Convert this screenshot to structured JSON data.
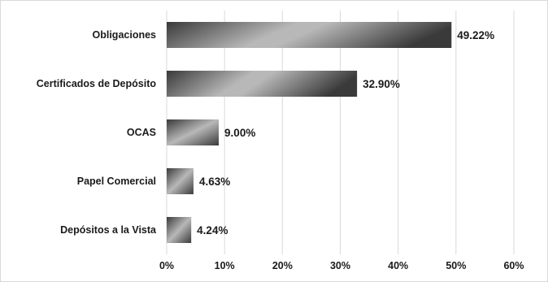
{
  "chart_data": {
    "type": "bar",
    "orientation": "horizontal",
    "categories": [
      "Obligaciones",
      "Certificados de Depósito",
      "OCAS",
      "Papel Comercial",
      "Depósitos a la Vista"
    ],
    "values": [
      49.22,
      32.9,
      9.0,
      4.63,
      4.24
    ],
    "data_labels": [
      "49.22%",
      "32.90%",
      "9.00%",
      "4.63%",
      "4.24%"
    ],
    "xticks": [
      0,
      10,
      20,
      30,
      40,
      50,
      60
    ],
    "xtick_labels": [
      "0%",
      "10%",
      "20%",
      "30%",
      "40%",
      "50%",
      "60%"
    ],
    "xlim": [
      0,
      60
    ],
    "title": "",
    "xlabel": "",
    "ylabel": "",
    "grid": "vertical",
    "legend": "none",
    "bar_gradient": {
      "dark": "#3a3a3a",
      "light": "#b8b8b8"
    }
  }
}
